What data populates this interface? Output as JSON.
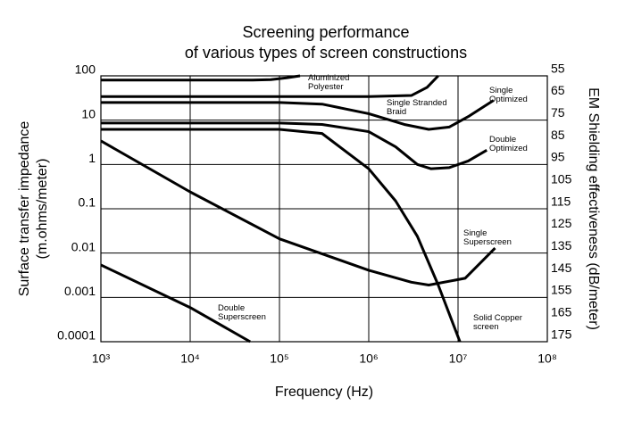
{
  "chart_data": {
    "type": "line",
    "title": [
      "Screening performance",
      "of various types of screen constructions"
    ],
    "x_label": "Frequency (Hz)",
    "y_label": [
      "Surface transfer impedance",
      "(m.ohms/meter)"
    ],
    "y2_label": "EM Shielding effectiveness (dB/meter)",
    "x_log": true,
    "y_log": true,
    "grid": true,
    "xlim": [
      1000,
      100000000
    ],
    "xticks": [
      {
        "value": 1000,
        "label": "10³"
      },
      {
        "value": 10000,
        "label": "10⁴"
      },
      {
        "value": 100000,
        "label": "10⁵"
      },
      {
        "value": 1000000,
        "label": "10⁶"
      },
      {
        "value": 10000000,
        "label": "10⁷"
      },
      {
        "value": 100000000,
        "label": "10⁸"
      }
    ],
    "ylim": [
      0.0001,
      100
    ],
    "yticks": [
      100,
      10,
      1,
      0.1,
      0.01,
      0.001,
      0.0001
    ],
    "y2lim": [
      178,
      58
    ],
    "y2ticks": [
      55,
      65,
      75,
      85,
      95,
      105,
      115,
      125,
      135,
      145,
      155,
      165,
      175
    ],
    "series": [
      {
        "name": "Aluminized Polyester",
        "color": "#000000",
        "x": [
          1000,
          50000,
          80000,
          120000,
          170000
        ],
        "values": [
          80,
          80,
          82,
          90,
          100
        ]
      },
      {
        "name": "Single Stranded Braid",
        "color": "#000000",
        "x": [
          1000,
          1000000,
          3000000,
          4500000,
          6000000
        ],
        "values": [
          34,
          34,
          36,
          55,
          100
        ]
      },
      {
        "name": "Single Optimized",
        "color": "#000000",
        "x": [
          1000,
          100000,
          300000,
          1000000,
          2500000,
          4700000,
          8000000,
          13000000,
          25000000
        ],
        "values": [
          25,
          25,
          23,
          14,
          8,
          6.2,
          7,
          12,
          28
        ]
      },
      {
        "name": "Double Optimized",
        "color": "#000000",
        "x": [
          1000,
          100000,
          300000,
          1000000,
          2000000,
          3500000,
          5000000,
          8000000,
          13000000,
          21000000
        ],
        "values": [
          8.6,
          8.6,
          8,
          5.5,
          2.5,
          1,
          0.8,
          0.85,
          1.2,
          2.1
        ]
      },
      {
        "name": "Single Superscreen",
        "color": "#000000",
        "x": [
          1000,
          10000,
          100000,
          1000000,
          3000000,
          4700000,
          12000000,
          26000000
        ],
        "values": [
          3.4,
          0.24,
          0.021,
          0.0041,
          0.0022,
          0.0019,
          0.0027,
          0.013
        ]
      },
      {
        "name": "Double Superscreen",
        "color": "#000000",
        "x": [
          1000,
          10000,
          47000
        ],
        "values": [
          0.0054,
          0.00059,
          0.0001
        ]
      },
      {
        "name": "Solid Copper screen",
        "color": "#000000",
        "x": [
          1000,
          100000,
          300000,
          1000000,
          2000000,
          3500000,
          6000000,
          10500000
        ],
        "values": [
          6.2,
          6.2,
          5,
          0.8,
          0.15,
          0.024,
          0.0019,
          0.0001
        ]
      }
    ]
  }
}
